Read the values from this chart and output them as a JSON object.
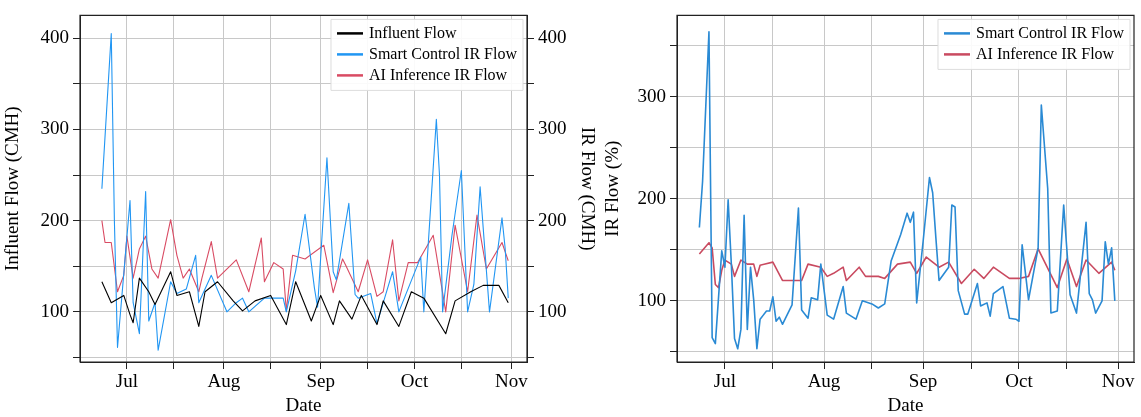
{
  "chart_data": [
    {
      "type": "line",
      "xlabel": "Date",
      "ylabel": "Influent Flow (CMH)",
      "y2label": "IR Flow (CMH)",
      "grid": true,
      "legend": "top right",
      "xlim": [
        "--06-16",
        "--11-06"
      ],
      "xticks": [
        {
          "value": "--07-01",
          "label": "Jul"
        },
        {
          "value": "--07-16",
          "label": null
        },
        {
          "value": "--08-01",
          "label": "Aug"
        },
        {
          "value": "--08-16",
          "label": null
        },
        {
          "value": "--09-01",
          "label": "Sep"
        },
        {
          "value": "--09-16",
          "label": null
        },
        {
          "value": "--10-01",
          "label": "Oct"
        },
        {
          "value": "--10-16",
          "label": null
        },
        {
          "value": "--11-01",
          "label": "Nov"
        }
      ],
      "ylim": [
        45,
        425
      ],
      "yticks": [
        {
          "value": 50,
          "label": null
        },
        100,
        {
          "value": 150,
          "label": null
        },
        200,
        {
          "value": 250,
          "label": null
        },
        300,
        {
          "value": 350,
          "label": null
        },
        400
      ],
      "y2lim": [
        45,
        425
      ],
      "y2ticks": [
        {
          "value": 50,
          "label": null
        },
        100,
        {
          "value": 150,
          "label": null
        },
        200,
        {
          "value": 250,
          "label": null
        },
        300,
        {
          "value": 350,
          "label": null
        },
        400
      ],
      "series": [
        {
          "name": "Influent Flow",
          "color": "#000000",
          "x": [
            "--06-23",
            "--06-26",
            "--06-30",
            "--07-02",
            "--07-03",
            "--07-05",
            "--07-08",
            "--07-10",
            "--07-15",
            "--07-17",
            "--07-21",
            "--07-24",
            "--07-26",
            "--07-30",
            "--08-04",
            "--08-07",
            "--08-11",
            "--08-16",
            "--08-21",
            "--08-24",
            "--08-29",
            "--09-01",
            "--09-05",
            "--09-07",
            "--09-11",
            "--09-14",
            "--09-19",
            "--09-21",
            "--09-26",
            "--09-30",
            "--10-04",
            "--10-11",
            "--10-14",
            "--10-19",
            "--10-23",
            "--10-28",
            "--10-31"
          ],
          "values": [
            133,
            110,
            118,
            97,
            88,
            137,
            122,
            108,
            144,
            118,
            122,
            84,
            122,
            133,
            112,
            101,
            112,
            118,
            86,
            133,
            90,
            118,
            86,
            112,
            92,
            118,
            86,
            112,
            84,
            122,
            115,
            76,
            112,
            122,
            129,
            129,
            110
          ]
        },
        {
          "name": "Smart Control IR Flow",
          "color": "#2196f3",
          "axis": "y2",
          "x": [
            "--06-23",
            "--06-26",
            "--06-27",
            "--06-28",
            "--07-02",
            "--07-03",
            "--07-05",
            "--07-07",
            "--07-08",
            "--07-10",
            "--07-11",
            "--07-15",
            "--07-17",
            "--07-20",
            "--07-23",
            "--07-24",
            "--07-28",
            "--08-02",
            "--08-05",
            "--08-07",
            "--08-09",
            "--08-14",
            "--08-20",
            "--08-21",
            "--08-24",
            "--08-27",
            "--08-30",
            "--08-31",
            "--09-03",
            "--09-05",
            "--09-06",
            "--09-10",
            "--09-12",
            "--09-13",
            "--09-17",
            "--09-19",
            "--09-24",
            "--09-26",
            "--10-03",
            "--10-04",
            "--10-08",
            "--10-09",
            "--10-10",
            "--10-13",
            "--10-16",
            "--10-18",
            "--10-20",
            "--10-22",
            "--10-25",
            "--10-29",
            "--10-30",
            "--10-31"
          ],
          "values": [
            235,
            405,
            200,
            61,
            222,
            110,
            76,
            232,
            90,
            110,
            58,
            133,
            120,
            125,
            162,
            110,
            140,
            100,
            110,
            115,
            100,
            115,
            115,
            100,
            145,
            207,
            126,
            105,
            269,
            144,
            135,
            219,
            119,
            115,
            120,
            87,
            144,
            100,
            160,
            100,
            311,
            250,
            100,
            184,
            255,
            100,
            130,
            237,
            100,
            203,
            170,
            115
          ]
        },
        {
          "name": "AI Inference IR Flow",
          "color": "#d94b63",
          "axis": "y2",
          "x": [
            "--06-23",
            "--06-24",
            "--06-26",
            "--06-28",
            "--06-30",
            "--07-01",
            "--07-03",
            "--07-05",
            "--07-07",
            "--07-09",
            "--07-11",
            "--07-15",
            "--07-17",
            "--07-19",
            "--07-21",
            "--07-24",
            "--07-25",
            "--07-28",
            "--07-30",
            "--08-05",
            "--08-09",
            "--08-13",
            "--08-14",
            "--08-17",
            "--08-20",
            "--08-21",
            "--08-23",
            "--08-27",
            "--09-02",
            "--09-05",
            "--09-08",
            "--09-09",
            "--09-13",
            "--09-16",
            "--09-19",
            "--09-21",
            "--09-24",
            "--09-26",
            "--09-29",
            "--10-02",
            "--10-07",
            "--10-11",
            "--10-14",
            "--10-18",
            "--10-21",
            "--10-24",
            "--10-29",
            "--10-31"
          ],
          "values": [
            200,
            176,
            176,
            122,
            140,
            183,
            137,
            169,
            183,
            147,
            137,
            201,
            162,
            137,
            147,
            122,
            137,
            177,
            137,
            157,
            122,
            181,
            133,
            154,
            147,
            101,
            162,
            158,
            173,
            121,
            158,
            151,
            122,
            157,
            117,
            122,
            179,
            112,
            154,
            154,
            184,
            100,
            195,
            122,
            206,
            147,
            176,
            156
          ]
        }
      ]
    },
    {
      "type": "line",
      "xlabel": "Date",
      "ylabel": "IR Flow (%)",
      "grid": true,
      "legend": "top right",
      "xlim": [
        "--06-16",
        "--11-06"
      ],
      "xticks": [
        {
          "value": "--07-01",
          "label": "Jul"
        },
        {
          "value": "--07-16",
          "label": null
        },
        {
          "value": "--08-01",
          "label": "Aug"
        },
        {
          "value": "--08-16",
          "label": null
        },
        {
          "value": "--09-01",
          "label": "Sep"
        },
        {
          "value": "--09-16",
          "label": null
        },
        {
          "value": "--10-01",
          "label": "Oct"
        },
        {
          "value": "--10-16",
          "label": null
        },
        {
          "value": "--11-01",
          "label": "Nov"
        }
      ],
      "ylim": [
        40,
        380
      ],
      "yticks": [
        {
          "value": 50,
          "label": null
        },
        100,
        {
          "value": 150,
          "label": null
        },
        200,
        {
          "value": 250,
          "label": null
        },
        300,
        {
          "value": 350,
          "label": null
        }
      ],
      "series": [
        {
          "name": "Smart Control IR Flow",
          "color": "#2a8ad4",
          "x": [
            "--06-23",
            "--06-24",
            "--06-26",
            "--06-27",
            "--06-28",
            "--06-30",
            "--07-01",
            "--07-02",
            "--07-03",
            "--07-04",
            "--07-05",
            "--07-06",
            "--07-07",
            "--07-08",
            "--07-09",
            "--07-10",
            "--07-11",
            "--07-12",
            "--07-14",
            "--07-15",
            "--07-16",
            "--07-17",
            "--07-18",
            "--07-19",
            "--07-22",
            "--07-24",
            "--07-25",
            "--07-27",
            "--07-28",
            "--07-30",
            "--07-31",
            "--08-02",
            "--08-04",
            "--08-07",
            "--08-08",
            "--08-11",
            "--08-13",
            "--08-16",
            "--08-18",
            "--08-20",
            "--08-22",
            "--08-25",
            "--08-27",
            "--08-28",
            "--08-29",
            "--08-30",
            "--09-01",
            "--09-03",
            "--09-04",
            "--09-05",
            "--09-06",
            "--09-09",
            "--09-10",
            "--09-11",
            "--09-12",
            "--09-14",
            "--09-15",
            "--09-18",
            "--09-19",
            "--09-21",
            "--09-22",
            "--09-23",
            "--09-26",
            "--09-28",
            "--09-30",
            "--10-01",
            "--10-02",
            "--10-04",
            "--10-07",
            "--10-08",
            "--10-10",
            "--10-11",
            "--10-13",
            "--10-15",
            "--10-17",
            "--10-19",
            "--10-22",
            "--10-23",
            "--10-24",
            "--10-25",
            "--10-27",
            "--10-28",
            "--10-29",
            "--10-30",
            "--10-31"
          ],
          "values": [
            172,
            217,
            364,
            64,
            58,
            149,
            133,
            199,
            136,
            63,
            53,
            72,
            184,
            72,
            133,
            101,
            53,
            82,
            90,
            90,
            104,
            80,
            84,
            77,
            96,
            191,
            91,
            83,
            103,
            101,
            136,
            86,
            82,
            114,
            88,
            82,
            100,
            97,
            93,
            97,
            139,
            165,
            186,
            177,
            187,
            98,
            158,
            221,
            206,
            162,
            120,
            133,
            194,
            192,
            110,
            87,
            87,
            117,
            95,
            98,
            85,
            107,
            114,
            83,
            82,
            80,
            155,
            101,
            152,
            292,
            210,
            88,
            90,
            194,
            106,
            88,
            177,
            107,
            101,
            88,
            100,
            158,
            136,
            152,
            100
          ]
        },
        {
          "name": "AI Inference IR Flow",
          "color": "#c94a60",
          "x": [
            "--06-23",
            "--06-26",
            "--06-27",
            "--06-28",
            "--06-29",
            "--06-30",
            "--07-01",
            "--07-03",
            "--07-04",
            "--07-06",
            "--07-08",
            "--07-10",
            "--07-11",
            "--07-12",
            "--07-16",
            "--07-19",
            "--07-25",
            "--07-27",
            "--07-31",
            "--08-02",
            "--08-04",
            "--08-07",
            "--08-08",
            "--08-12",
            "--08-14",
            "--08-18",
            "--08-20",
            "--08-24",
            "--08-28",
            "--08-30",
            "--09-02",
            "--09-06",
            "--09-09",
            "--09-13",
            "--09-17",
            "--09-20",
            "--09-23",
            "--09-28",
            "--10-01",
            "--10-04",
            "--10-07",
            "--10-13",
            "--10-16",
            "--10-19",
            "--10-22",
            "--10-26",
            "--10-30",
            "--10-31"
          ],
          "values": [
            146,
            157,
            152,
            116,
            113,
            130,
            140,
            136,
            124,
            140,
            136,
            136,
            124,
            135,
            138,
            120,
            120,
            136,
            133,
            124,
            127,
            133,
            120,
            133,
            124,
            124,
            122,
            136,
            138,
            127,
            143,
            133,
            138,
            117,
            131,
            122,
            133,
            122,
            122,
            124,
            151,
            113,
            141,
            114,
            140,
            127,
            138,
            130
          ]
        }
      ]
    }
  ]
}
